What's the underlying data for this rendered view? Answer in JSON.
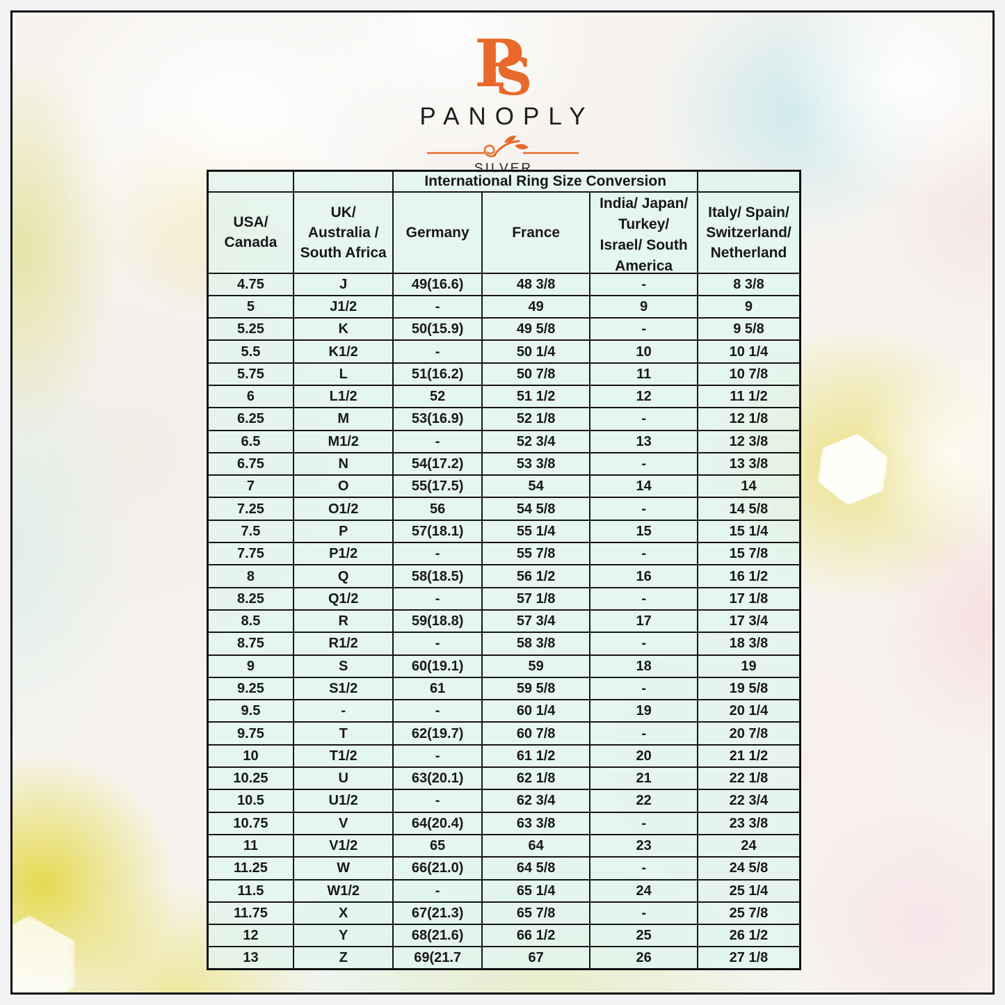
{
  "brand": {
    "monogram_p": "P",
    "monogram_s": "S",
    "name": "PANOPLY",
    "subtitle": "SILVER",
    "accent_color": "#e8692a",
    "text_color": "#1e1e1e"
  },
  "chart_data": {
    "type": "table",
    "title": "International Ring Size Conversion",
    "columns": [
      "USA/\nCanada",
      "UK/\nAustralia /\nSouth Africa",
      "Germany",
      "France",
      "India/ Japan/\nTurkey/\nIsrael/ South\nAmerica",
      "Italy/ Spain/\nSwitzerland/\nNetherland"
    ],
    "rows": [
      [
        "4.75",
        "J",
        "49(16.6)",
        "48 3/8",
        "-",
        "8 3/8"
      ],
      [
        "5",
        "J1/2",
        "-",
        "49",
        "9",
        "9"
      ],
      [
        "5.25",
        "K",
        "50(15.9)",
        "49 5/8",
        "-",
        "9 5/8"
      ],
      [
        "5.5",
        "K1/2",
        "-",
        "50 1/4",
        "10",
        "10 1/4"
      ],
      [
        "5.75",
        "L",
        "51(16.2)",
        "50 7/8",
        "11",
        "10 7/8"
      ],
      [
        "6",
        "L1/2",
        "52",
        "51 1/2",
        "12",
        "11 1/2"
      ],
      [
        "6.25",
        "M",
        "53(16.9)",
        "52 1/8",
        "-",
        "12 1/8"
      ],
      [
        "6.5",
        "M1/2",
        "-",
        "52 3/4",
        "13",
        "12 3/8"
      ],
      [
        "6.75",
        "N",
        "54(17.2)",
        "53 3/8",
        "-",
        "13 3/8"
      ],
      [
        "7",
        "O",
        "55(17.5)",
        "54",
        "14",
        "14"
      ],
      [
        "7.25",
        "O1/2",
        "56",
        "54 5/8",
        "-",
        "14 5/8"
      ],
      [
        "7.5",
        "P",
        "57(18.1)",
        "55 1/4",
        "15",
        "15 1/4"
      ],
      [
        "7.75",
        "P1/2",
        "-",
        "55 7/8",
        "-",
        "15 7/8"
      ],
      [
        "8",
        "Q",
        "58(18.5)",
        "56 1/2",
        "16",
        "16 1/2"
      ],
      [
        "8.25",
        "Q1/2",
        "-",
        "57 1/8",
        "-",
        "17 1/8"
      ],
      [
        "8.5",
        "R",
        "59(18.8)",
        "57 3/4",
        "17",
        "17 3/4"
      ],
      [
        "8.75",
        "R1/2",
        "-",
        "58 3/8",
        "-",
        "18 3/8"
      ],
      [
        "9",
        "S",
        "60(19.1)",
        "59",
        "18",
        "19"
      ],
      [
        "9.25",
        "S1/2",
        "61",
        "59 5/8",
        "-",
        "19 5/8"
      ],
      [
        "9.5",
        "-",
        "-",
        "60 1/4",
        "19",
        "20 1/4"
      ],
      [
        "9.75",
        "T",
        "62(19.7)",
        "60 7/8",
        "-",
        "20 7/8"
      ],
      [
        "10",
        "T1/2",
        "-",
        "61 1/2",
        "20",
        "21 1/2"
      ],
      [
        "10.25",
        "U",
        "63(20.1)",
        "62 1/8",
        "21",
        "22 1/8"
      ],
      [
        "10.5",
        "U1/2",
        "-",
        "62 3/4",
        "22",
        "22 3/4"
      ],
      [
        "10.75",
        "V",
        "64(20.4)",
        "63 3/8",
        "-",
        "23 3/8"
      ],
      [
        "11",
        "V1/2",
        "65",
        "64",
        "23",
        "24"
      ],
      [
        "11.25",
        "W",
        "66(21.0)",
        "64 5/8",
        "-",
        "24 5/8"
      ],
      [
        "11.5",
        "W1/2",
        "-",
        "65 1/4",
        "24",
        "25 1/4"
      ],
      [
        "11.75",
        "X",
        "67(21.3)",
        "65 7/8",
        "-",
        "25 7/8"
      ],
      [
        "12",
        "Y",
        "68(21.6)",
        "66 1/2",
        "25",
        "26 1/2"
      ],
      [
        "13",
        "Z",
        "69(21.7",
        "67",
        "26",
        "27 1/8"
      ]
    ]
  }
}
